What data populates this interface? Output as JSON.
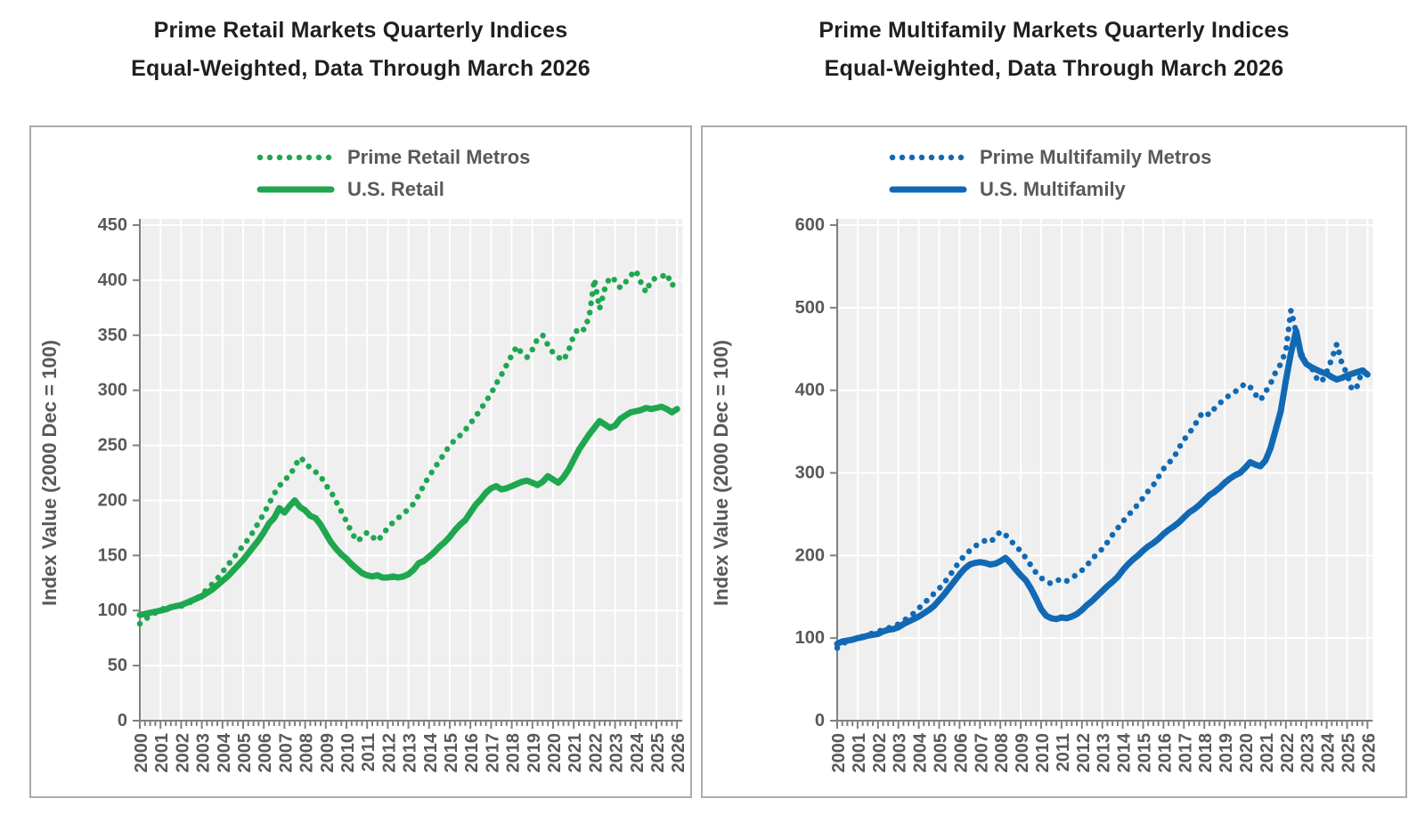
{
  "page": {
    "background": "#ffffff"
  },
  "chart_data": [
    {
      "type": "line",
      "title": "Prime Retail Markets Quarterly Indices",
      "subtitle": "Equal-Weighted, Data Through March 2026",
      "ylabel": "Index Value (2000 Dec = 100)",
      "ylim": [
        0,
        450
      ],
      "y_ticks": [
        0,
        50,
        100,
        150,
        200,
        250,
        300,
        350,
        400,
        450
      ],
      "x_start": 2000,
      "x_end": 2026,
      "x_step_per_point": 0.25,
      "x_tick_labels": [
        "2000",
        "2001",
        "2002",
        "2003",
        "2004",
        "2005",
        "2006",
        "2007",
        "2008",
        "2009",
        "2010",
        "2011",
        "2012",
        "2013",
        "2014",
        "2015",
        "2016",
        "2017",
        "2018",
        "2019",
        "2020",
        "2021",
        "2022",
        "2023",
        "2024",
        "2025",
        "2026"
      ],
      "grid": true,
      "legend_position": "top-center",
      "plot_bg": "#efefef",
      "gridline_color": "#ffffff",
      "axis_color": "#808080",
      "accent_color": "#1fa750",
      "series": [
        {
          "name": "Prime Retail Metros",
          "style": "dotted",
          "values": [
            88,
            92,
            95,
            98,
            101,
            102,
            103,
            103,
            104,
            106,
            108,
            111,
            115,
            119,
            124,
            129,
            135,
            141,
            147,
            153,
            159,
            165,
            172,
            180,
            188,
            197,
            206,
            213,
            219,
            222,
            231,
            239,
            235,
            229,
            226,
            222,
            214,
            208,
            199,
            190,
            181,
            171,
            163,
            166,
            171,
            167,
            163,
            169,
            175,
            180,
            184,
            188,
            192,
            197,
            205,
            214,
            222,
            229,
            236,
            243,
            250,
            255,
            259,
            264,
            270,
            276,
            283,
            290,
            297,
            306,
            314,
            323,
            332,
            340,
            333,
            330,
            337,
            347,
            350,
            341,
            334,
            330,
            327,
            336,
            350,
            357,
            355,
            367,
            401,
            374,
            392,
            403,
            400,
            393,
            398,
            404,
            409,
            398,
            389,
            400,
            402,
            403,
            406,
            395,
            400
          ]
        },
        {
          "name": "U.S. Retail",
          "style": "solid",
          "values": [
            96,
            97,
            98,
            99,
            100,
            101,
            103,
            104,
            105,
            107,
            109,
            111,
            113,
            116,
            119,
            123,
            127,
            131,
            136,
            141,
            146,
            152,
            158,
            164,
            171,
            179,
            184,
            193,
            189,
            195,
            200,
            194,
            191,
            186,
            184,
            178,
            170,
            162,
            156,
            151,
            147,
            142,
            138,
            134,
            132,
            131,
            132,
            130,
            130,
            131,
            130,
            131,
            133,
            137,
            143,
            145,
            149,
            153,
            158,
            162,
            167,
            173,
            178,
            182,
            189,
            196,
            201,
            207,
            211,
            213,
            210,
            211,
            213,
            215,
            217,
            218,
            216,
            214,
            217,
            222,
            219,
            216,
            221,
            228,
            237,
            246,
            253,
            260,
            266,
            272,
            269,
            266,
            268,
            274,
            277,
            280,
            281,
            282,
            284,
            283,
            284,
            285,
            283,
            280,
            283
          ]
        }
      ]
    },
    {
      "type": "line",
      "title": "Prime Multifamily Markets Quarterly Indices",
      "subtitle": "Equal-Weighted, Data Through March 2026",
      "ylabel": "Index Value (2000 Dec = 100)",
      "ylim": [
        0,
        600
      ],
      "y_ticks": [
        0,
        100,
        200,
        300,
        400,
        500,
        600
      ],
      "x_start": 2000,
      "x_end": 2026,
      "x_step_per_point": 0.25,
      "x_tick_labels": [
        "2000",
        "2001",
        "2002",
        "2003",
        "2004",
        "2005",
        "2006",
        "2007",
        "2008",
        "2009",
        "2010",
        "2011",
        "2012",
        "2013",
        "2014",
        "2015",
        "2016",
        "2017",
        "2018",
        "2019",
        "2020",
        "2021",
        "2022",
        "2023",
        "2024",
        "2025",
        "2026"
      ],
      "grid": true,
      "legend_position": "top-center",
      "plot_bg": "#efefef",
      "gridline_color": "#ffffff",
      "axis_color": "#808080",
      "accent_color": "#1169b4",
      "series": [
        {
          "name": "Prime Multifamily Metros",
          "style": "dotted",
          "values": [
            88,
            93,
            96,
            98,
            100,
            102,
            104,
            106,
            108,
            110,
            112,
            114,
            117,
            121,
            125,
            130,
            136,
            142,
            148,
            154,
            160,
            167,
            175,
            184,
            193,
            200,
            206,
            211,
            215,
            218,
            216,
            222,
            229,
            225,
            218,
            212,
            205,
            197,
            188,
            179,
            173,
            168,
            166,
            169,
            172,
            169,
            173,
            177,
            182,
            188,
            196,
            202,
            208,
            216,
            225,
            233,
            241,
            248,
            255,
            262,
            270,
            278,
            285,
            295,
            305,
            312,
            318,
            330,
            340,
            348,
            356,
            368,
            374,
            370,
            378,
            384,
            390,
            394,
            398,
            403,
            408,
            404,
            395,
            388,
            398,
            408,
            422,
            432,
            448,
            497,
            470,
            445,
            432,
            428,
            415,
            410,
            422,
            438,
            456,
            432,
            420,
            400,
            405,
            425,
            420
          ]
        },
        {
          "name": "U.S. Multifamily",
          "style": "solid",
          "values": [
            93,
            96,
            97,
            98,
            100,
            101,
            103,
            104,
            105,
            108,
            110,
            111,
            113,
            117,
            120,
            123,
            126,
            130,
            134,
            139,
            146,
            153,
            161,
            169,
            177,
            184,
            189,
            191,
            192,
            191,
            189,
            190,
            193,
            197,
            191,
            183,
            176,
            170,
            160,
            148,
            135,
            127,
            124,
            123,
            125,
            124,
            126,
            129,
            134,
            140,
            145,
            151,
            157,
            163,
            168,
            174,
            182,
            189,
            195,
            200,
            206,
            211,
            215,
            220,
            226,
            231,
            235,
            240,
            246,
            252,
            256,
            261,
            267,
            273,
            277,
            282,
            288,
            293,
            297,
            300,
            306,
            313,
            310,
            308,
            315,
            330,
            352,
            375,
            412,
            445,
            472,
            442,
            432,
            428,
            425,
            422,
            420,
            416,
            413,
            415,
            418,
            420,
            422,
            424,
            419
          ]
        }
      ]
    }
  ]
}
